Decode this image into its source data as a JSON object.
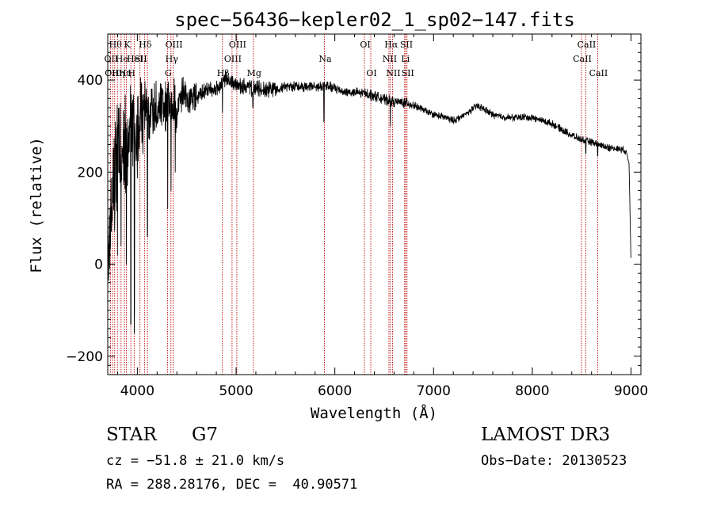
{
  "chart_data": {
    "type": "line",
    "title": "spec−56436−kepler02_1_sp02−147.fits",
    "xlabel": "Wavelength (Å)",
    "ylabel": "Flux (relative)",
    "xlim": [
      3700,
      9100
    ],
    "ylim": [
      -240,
      500
    ],
    "xticks": [
      4000,
      5000,
      6000,
      7000,
      8000,
      9000
    ],
    "xtick_labels": [
      "4000",
      "5000",
      "6000",
      "7000",
      "8000",
      "9000"
    ],
    "yticks": [
      -200,
      0,
      200,
      400
    ],
    "ytick_labels": [
      "−200",
      "0",
      "200",
      "400"
    ],
    "grid": false,
    "spectrum_anchors": [
      [
        3700,
        120
      ],
      [
        3720,
        40
      ],
      [
        3750,
        150
      ],
      [
        3800,
        260
      ],
      [
        3850,
        200
      ],
      [
        3900,
        280
      ],
      [
        3950,
        300
      ],
      [
        4000,
        280
      ],
      [
        4050,
        330
      ],
      [
        4100,
        300
      ],
      [
        4150,
        340
      ],
      [
        4200,
        330
      ],
      [
        4250,
        360
      ],
      [
        4300,
        340
      ],
      [
        4350,
        350
      ],
      [
        4400,
        330
      ],
      [
        4450,
        370
      ],
      [
        4500,
        360
      ],
      [
        4600,
        360
      ],
      [
        4700,
        380
      ],
      [
        4800,
        380
      ],
      [
        4900,
        400
      ],
      [
        5000,
        390
      ],
      [
        5100,
        385
      ],
      [
        5200,
        380
      ],
      [
        5300,
        380
      ],
      [
        5400,
        382
      ],
      [
        5500,
        385
      ],
      [
        5600,
        388
      ],
      [
        5700,
        385
      ],
      [
        5800,
        385
      ],
      [
        5900,
        388
      ],
      [
        6000,
        382
      ],
      [
        6100,
        375
      ],
      [
        6200,
        372
      ],
      [
        6300,
        372
      ],
      [
        6400,
        366
      ],
      [
        6500,
        358
      ],
      [
        6600,
        352
      ],
      [
        6700,
        352
      ],
      [
        6800,
        345
      ],
      [
        6900,
        335
      ],
      [
        7000,
        325
      ],
      [
        7100,
        320
      ],
      [
        7200,
        312
      ],
      [
        7300,
        322
      ],
      [
        7400,
        338
      ],
      [
        7450,
        345
      ],
      [
        7500,
        338
      ],
      [
        7600,
        325
      ],
      [
        7700,
        320
      ],
      [
        7800,
        318
      ],
      [
        7900,
        320
      ],
      [
        8000,
        318
      ],
      [
        8100,
        312
      ],
      [
        8200,
        305
      ],
      [
        8300,
        292
      ],
      [
        8400,
        280
      ],
      [
        8500,
        270
      ],
      [
        8600,
        265
      ],
      [
        8700,
        258
      ],
      [
        8800,
        252
      ],
      [
        8900,
        250
      ],
      [
        8950,
        245
      ],
      [
        8980,
        220
      ],
      [
        8995,
        60
      ],
      [
        9000,
        5
      ]
    ],
    "absorption_dips": [
      {
        "x": 3934,
        "y": -130
      },
      {
        "x": 3968,
        "y": -150
      },
      {
        "x": 3970,
        "y": -100
      },
      {
        "x": 3889,
        "y": 0
      },
      {
        "x": 3835,
        "y": 40
      },
      {
        "x": 3798,
        "y": 20
      },
      {
        "x": 4102,
        "y": 60
      },
      {
        "x": 4308,
        "y": 120
      },
      {
        "x": 4340,
        "y": 160
      },
      {
        "x": 4384,
        "y": 200
      },
      {
        "x": 4861,
        "y": 330
      },
      {
        "x": 5170,
        "y": 340
      },
      {
        "x": 5890,
        "y": 310
      },
      {
        "x": 6563,
        "y": 300
      },
      {
        "x": 8542,
        "y": 240
      },
      {
        "x": 8662,
        "y": 235
      }
    ],
    "line_markers": [
      {
        "x": 3727,
        "label": "OII",
        "row": 1
      },
      {
        "x": 3750,
        "label": "OIII",
        "row": 2
      },
      {
        "x": 3770,
        "label": "Hθ",
        "row": 0
      },
      {
        "x": 3798,
        "label": "Hη",
        "row": 2
      },
      {
        "x": 3835,
        "label": "He",
        "row": 1
      },
      {
        "x": 3869,
        "label": "Hη",
        "row": 2
      },
      {
        "x": 3889,
        "label": "K",
        "row": 0
      },
      {
        "x": 3934,
        "label": "H",
        "row": 2
      },
      {
        "x": 3968,
        "label": "HeI",
        "row": 1
      },
      {
        "x": 4026,
        "label": "SII",
        "row": 1
      },
      {
        "x": 4072,
        "label": "Hδ",
        "row": 0
      },
      {
        "x": 4102,
        "label": "",
        "row": 0
      },
      {
        "x": 4305,
        "label": "G",
        "row": 2
      },
      {
        "x": 4340,
        "label": "Hγ",
        "row": 1
      },
      {
        "x": 4363,
        "label": "OIII",
        "row": 0
      },
      {
        "x": 4861,
        "label": "Hβ",
        "row": 2
      },
      {
        "x": 4959,
        "label": "OIII",
        "row": 1
      },
      {
        "x": 5007,
        "label": "OIII",
        "row": 0
      },
      {
        "x": 5175,
        "label": "Mg",
        "row": 2
      },
      {
        "x": 5894,
        "label": "Na",
        "row": 1
      },
      {
        "x": 6300,
        "label": "OI",
        "row": 0
      },
      {
        "x": 6364,
        "label": "OI",
        "row": 2
      },
      {
        "x": 6548,
        "label": "NII",
        "row": 1
      },
      {
        "x": 6563,
        "label": "Hα",
        "row": 0
      },
      {
        "x": 6584,
        "label": "NII",
        "row": 2
      },
      {
        "x": 6707,
        "label": "Li",
        "row": 1
      },
      {
        "x": 6717,
        "label": "SII",
        "row": 0
      },
      {
        "x": 6731,
        "label": "SII",
        "row": 2
      },
      {
        "x": 8498,
        "label": "CaII",
        "row": 1
      },
      {
        "x": 8542,
        "label": "CaII",
        "row": 0
      },
      {
        "x": 8662,
        "label": "CaII",
        "row": 2
      }
    ]
  },
  "info": {
    "class_label": "STAR",
    "subclass": "G7",
    "survey": "LAMOST DR3",
    "cz": "cz = −51.8 ± 21.0 km/s",
    "obs_date": "Obs−Date: 20130523",
    "coords": "RA = 288.28176, DEC =  40.90571"
  },
  "colors": {
    "spectrum": "#000000",
    "marker_line": "#c00000",
    "axes": "#000000"
  }
}
